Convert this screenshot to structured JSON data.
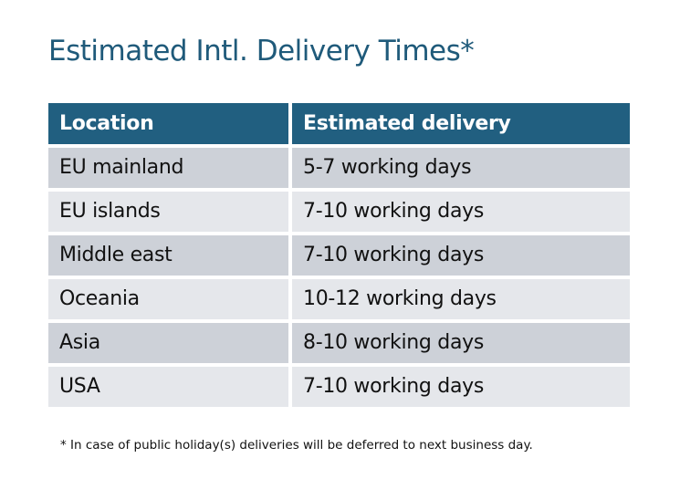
{
  "title": "Estimated Intl. Delivery Times*",
  "table": {
    "headers": [
      "Location",
      "Estimated delivery"
    ],
    "rows": [
      [
        "EU mainland",
        "5-7 working days"
      ],
      [
        "EU islands",
        "7-10 working days"
      ],
      [
        "Middle east",
        "7-10 working days"
      ],
      [
        "Oceania",
        "10-12 working days"
      ],
      [
        "Asia",
        "8-10 working days"
      ],
      [
        "USA",
        "7-10 working days"
      ]
    ]
  },
  "footnote": "* In case of public holiday(s) deliveries will be deferred to next business day.",
  "colors": {
    "header": "#215f80",
    "title": "#1f5a7a",
    "row_dark": "#cdd1d8",
    "row_light": "#e5e7eb"
  }
}
